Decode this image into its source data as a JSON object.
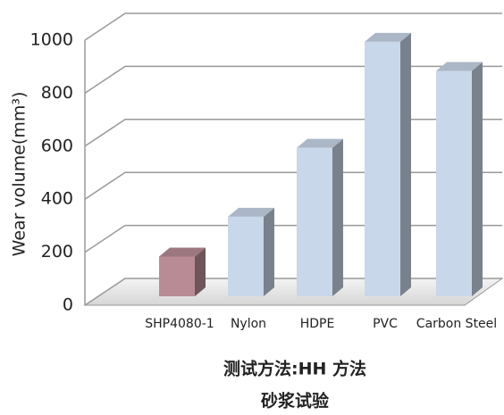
{
  "chart_data": {
    "type": "bar3d",
    "title": "测试方法:HH 方法",
    "subtitle": "砂浆试验",
    "y_label": "Wear volume(mm³)",
    "categories": [
      "SHP4080-1",
      "Nylon",
      "HDPE",
      "PVC",
      "Carbon Steel"
    ],
    "values": [
      150,
      300,
      560,
      960,
      850
    ],
    "colors": [
      "#b98c95",
      "#c9d7ea",
      "#c9d7ea",
      "#c9d7ea",
      "#c9d7ea"
    ],
    "ylim": [
      0,
      1000
    ],
    "yticks": [
      0,
      200,
      400,
      600,
      800,
      1000
    ],
    "grid": true
  }
}
